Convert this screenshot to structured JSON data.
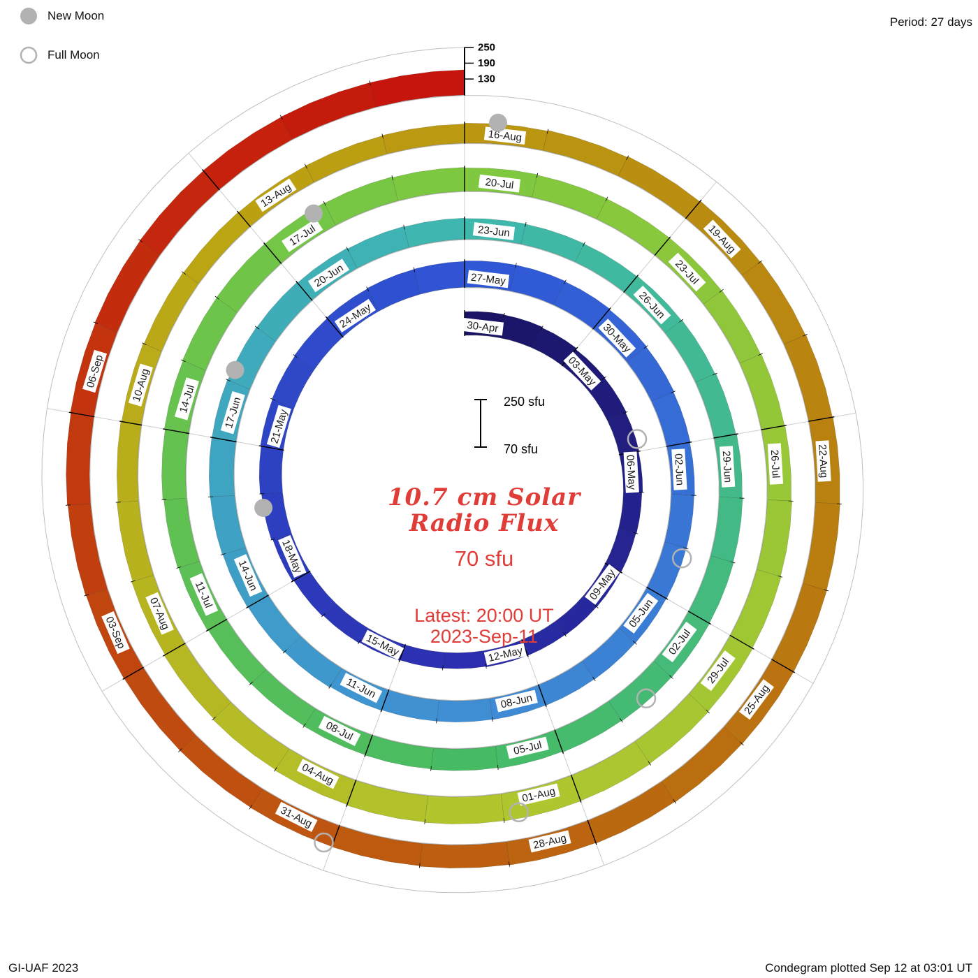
{
  "header": {
    "period_label": "Period: 27 days"
  },
  "legend": {
    "new_moon": "New Moon",
    "full_moon": "Full Moon"
  },
  "footer": {
    "left": "GI-UAF 2023",
    "right": "Condegram plotted Sep 12 at 03:01 UT"
  },
  "center": {
    "title_line1": "10.7 cm Solar",
    "title_line2": "Radio Flux",
    "baseline": "70 sfu",
    "latest_line1": "Latest: 20:00 UT",
    "latest_line2": "2023-Sep-11",
    "accent_color": "#e03c38"
  },
  "scale": {
    "bar_top_label": "250 sfu",
    "bar_bottom_label": "70 sfu"
  },
  "chart_data": {
    "type": "spiral",
    "plot_style": "condegram",
    "title": "10.7 cm Solar Radio Flux",
    "units": "sfu",
    "period_days": 27,
    "baseline_sfu": 70,
    "max_sfu": 250,
    "scale_ticks": [
      250,
      190,
      130
    ],
    "start_date": "2023-04-30",
    "end_date": "2023-09-11",
    "label_step_days": 3,
    "date_labels": [
      "30-Apr",
      "03-May",
      "06-May",
      "09-May",
      "12-May",
      "15-May",
      "18-May",
      "21-May",
      "24-May",
      "27-May",
      "30-May",
      "02-Jun",
      "05-Jun",
      "08-Jun",
      "11-Jun",
      "14-Jun",
      "17-Jun",
      "20-Jun",
      "23-Jun",
      "26-Jun",
      "29-Jun",
      "02-Jul",
      "05-Jul",
      "08-Jul",
      "11-Jul",
      "14-Jul",
      "17-Jul",
      "20-Jul",
      "23-Jul",
      "26-Jul",
      "29-Jul",
      "01-Aug",
      "04-Aug",
      "07-Aug",
      "10-Aug",
      "13-Aug",
      "16-Aug",
      "19-Aug",
      "22-Aug",
      "25-Aug",
      "28-Aug",
      "31-Aug",
      "03-Sep",
      "06-Sep"
    ],
    "values": [
      160,
      158,
      155,
      150,
      148,
      145,
      143,
      140,
      138,
      136,
      135,
      133,
      132,
      130,
      131,
      133,
      136,
      140,
      145,
      150,
      155,
      158,
      160,
      162,
      165,
      167,
      168,
      170,
      170,
      168,
      165,
      163,
      160,
      158,
      156,
      155,
      154,
      153,
      152,
      151,
      150,
      150,
      152,
      155,
      158,
      160,
      162,
      163,
      162,
      160,
      158,
      155,
      152,
      150,
      148,
      147,
      146,
      148,
      150,
      153,
      156,
      158,
      160,
      161,
      160,
      158,
      155,
      152,
      150,
      149,
      148,
      150,
      153,
      156,
      160,
      163,
      165,
      166,
      165,
      163,
      160,
      158,
      156,
      155,
      155,
      156,
      158,
      160,
      163,
      166,
      168,
      170,
      172,
      173,
      172,
      170,
      167,
      164,
      160,
      156,
      152,
      148,
      145,
      142,
      140,
      139,
      140,
      142,
      145,
      148,
      152,
      155,
      158,
      160,
      162,
      163,
      164,
      164,
      163,
      161,
      159,
      157,
      155,
      154,
      153,
      153,
      154,
      156,
      158,
      160,
      162,
      163,
      164,
      165,
      165
    ],
    "moons": [
      {
        "phase": "full",
        "date": "05-May",
        "day": 5.7
      },
      {
        "phase": "new",
        "date": "19-May",
        "day": 19.7
      },
      {
        "phase": "full",
        "date": "04-Jun",
        "day": 35.2
      },
      {
        "phase": "new",
        "date": "18-Jun",
        "day": 49.2
      },
      {
        "phase": "full",
        "date": "03-Jul",
        "day": 64.5
      },
      {
        "phase": "new",
        "date": "17-Jul",
        "day": 78.8
      },
      {
        "phase": "full",
        "date": "01-Aug",
        "day": 93.8
      },
      {
        "phase": "new",
        "date": "16-Aug",
        "day": 108.4
      },
      {
        "phase": "full",
        "date": "31-Aug",
        "day": 123.1
      }
    ],
    "moon_color": "#b2b2b2",
    "colormap": [
      [
        0.0,
        "#1b1464"
      ],
      [
        0.1,
        "#2b2fb0"
      ],
      [
        0.2,
        "#3056d6"
      ],
      [
        0.3,
        "#3f8fd4"
      ],
      [
        0.4,
        "#3fb8ae"
      ],
      [
        0.5,
        "#47bb63"
      ],
      [
        0.6,
        "#7ec840"
      ],
      [
        0.7,
        "#b2c62e"
      ],
      [
        0.78,
        "#bba312"
      ],
      [
        0.86,
        "#b97c10"
      ],
      [
        0.93,
        "#bf4d10"
      ],
      [
        1.0,
        "#c6150c"
      ]
    ]
  }
}
